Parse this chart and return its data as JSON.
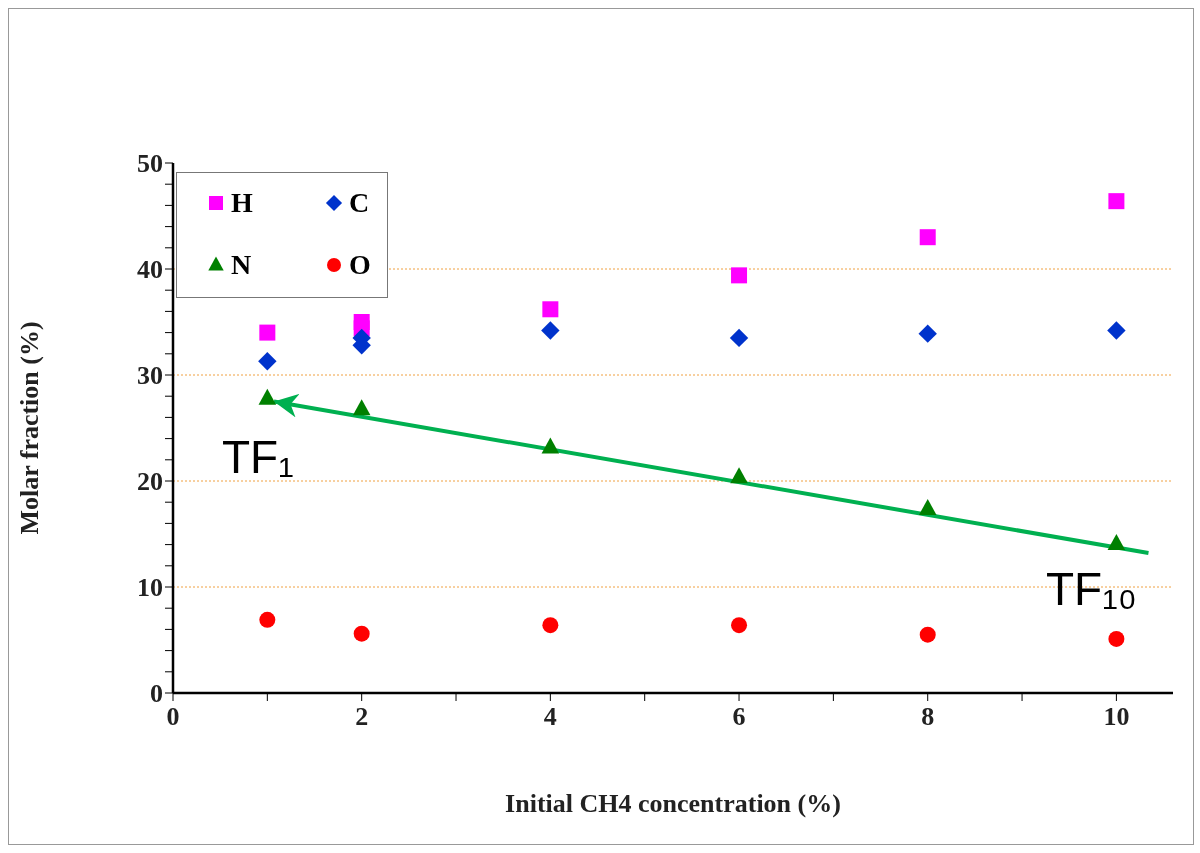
{
  "chart_data": {
    "type": "scatter",
    "xlabel": "Initial CH4  concentration (%)",
    "ylabel": "Molar fraction (%)",
    "xlim": [
      0,
      10.6
    ],
    "xticks": [
      0,
      {
        "value": 1,
        "label": null
      },
      2,
      {
        "value": 3,
        "label": null
      },
      4,
      {
        "value": 5,
        "label": null
      },
      6,
      {
        "value": 7,
        "label": null
      },
      8,
      {
        "value": 9,
        "label": null
      },
      10
    ],
    "ylim": [
      0,
      50
    ],
    "yticks": [
      0,
      {
        "value": 2,
        "label": null
      },
      {
        "value": 4,
        "label": null
      },
      {
        "value": 6,
        "label": null
      },
      {
        "value": 8,
        "label": null
      },
      10,
      {
        "value": 12,
        "label": null
      },
      {
        "value": 14,
        "label": null
      },
      {
        "value": 16,
        "label": null
      },
      {
        "value": 18,
        "label": null
      },
      20,
      {
        "value": 22,
        "label": null
      },
      {
        "value": 24,
        "label": null
      },
      {
        "value": 26,
        "label": null
      },
      {
        "value": 28,
        "label": null
      },
      30,
      {
        "value": 32,
        "label": null
      },
      {
        "value": 34,
        "label": null
      },
      {
        "value": 36,
        "label": null
      },
      {
        "value": 38,
        "label": null
      },
      40,
      {
        "value": 42,
        "label": null
      },
      {
        "value": 44,
        "label": null
      },
      {
        "value": 46,
        "label": null
      },
      {
        "value": 48,
        "label": null
      },
      50
    ],
    "grid": "y",
    "legend": "top left",
    "series": [
      {
        "name": "H",
        "color": "#ff00ff",
        "marker": "square",
        "x": [
          1,
          2,
          2,
          4,
          6,
          8,
          10
        ],
        "values": [
          34.0,
          35.0,
          34.4,
          36.2,
          39.4,
          43.0,
          46.4
        ]
      },
      {
        "name": "C",
        "color": "#0033cc",
        "marker": "diamond",
        "x": [
          1,
          2,
          2,
          4,
          6,
          8,
          10
        ],
        "values": [
          31.3,
          33.5,
          32.8,
          34.2,
          33.5,
          33.9,
          34.2
        ]
      },
      {
        "name": "N",
        "color": "#008000",
        "marker": "triangle",
        "x": [
          1,
          2,
          4,
          6,
          8,
          10
        ],
        "values": [
          27.8,
          26.8,
          23.2,
          20.4,
          17.4,
          14.1
        ]
      },
      {
        "name": "O",
        "color": "#ff0000",
        "marker": "circle",
        "x": [
          1,
          2,
          4,
          6,
          8,
          10
        ],
        "values": [
          6.9,
          5.6,
          6.4,
          6.4,
          5.5,
          5.1
        ]
      },
      {
        "type": "line",
        "color": "#00b050",
        "marker": "none",
        "x": [
          1.07,
          10.34
        ],
        "values": [
          27.5,
          13.2
        ]
      }
    ],
    "annotations": [
      "TF₁",
      "TF₁₀"
    ]
  }
}
